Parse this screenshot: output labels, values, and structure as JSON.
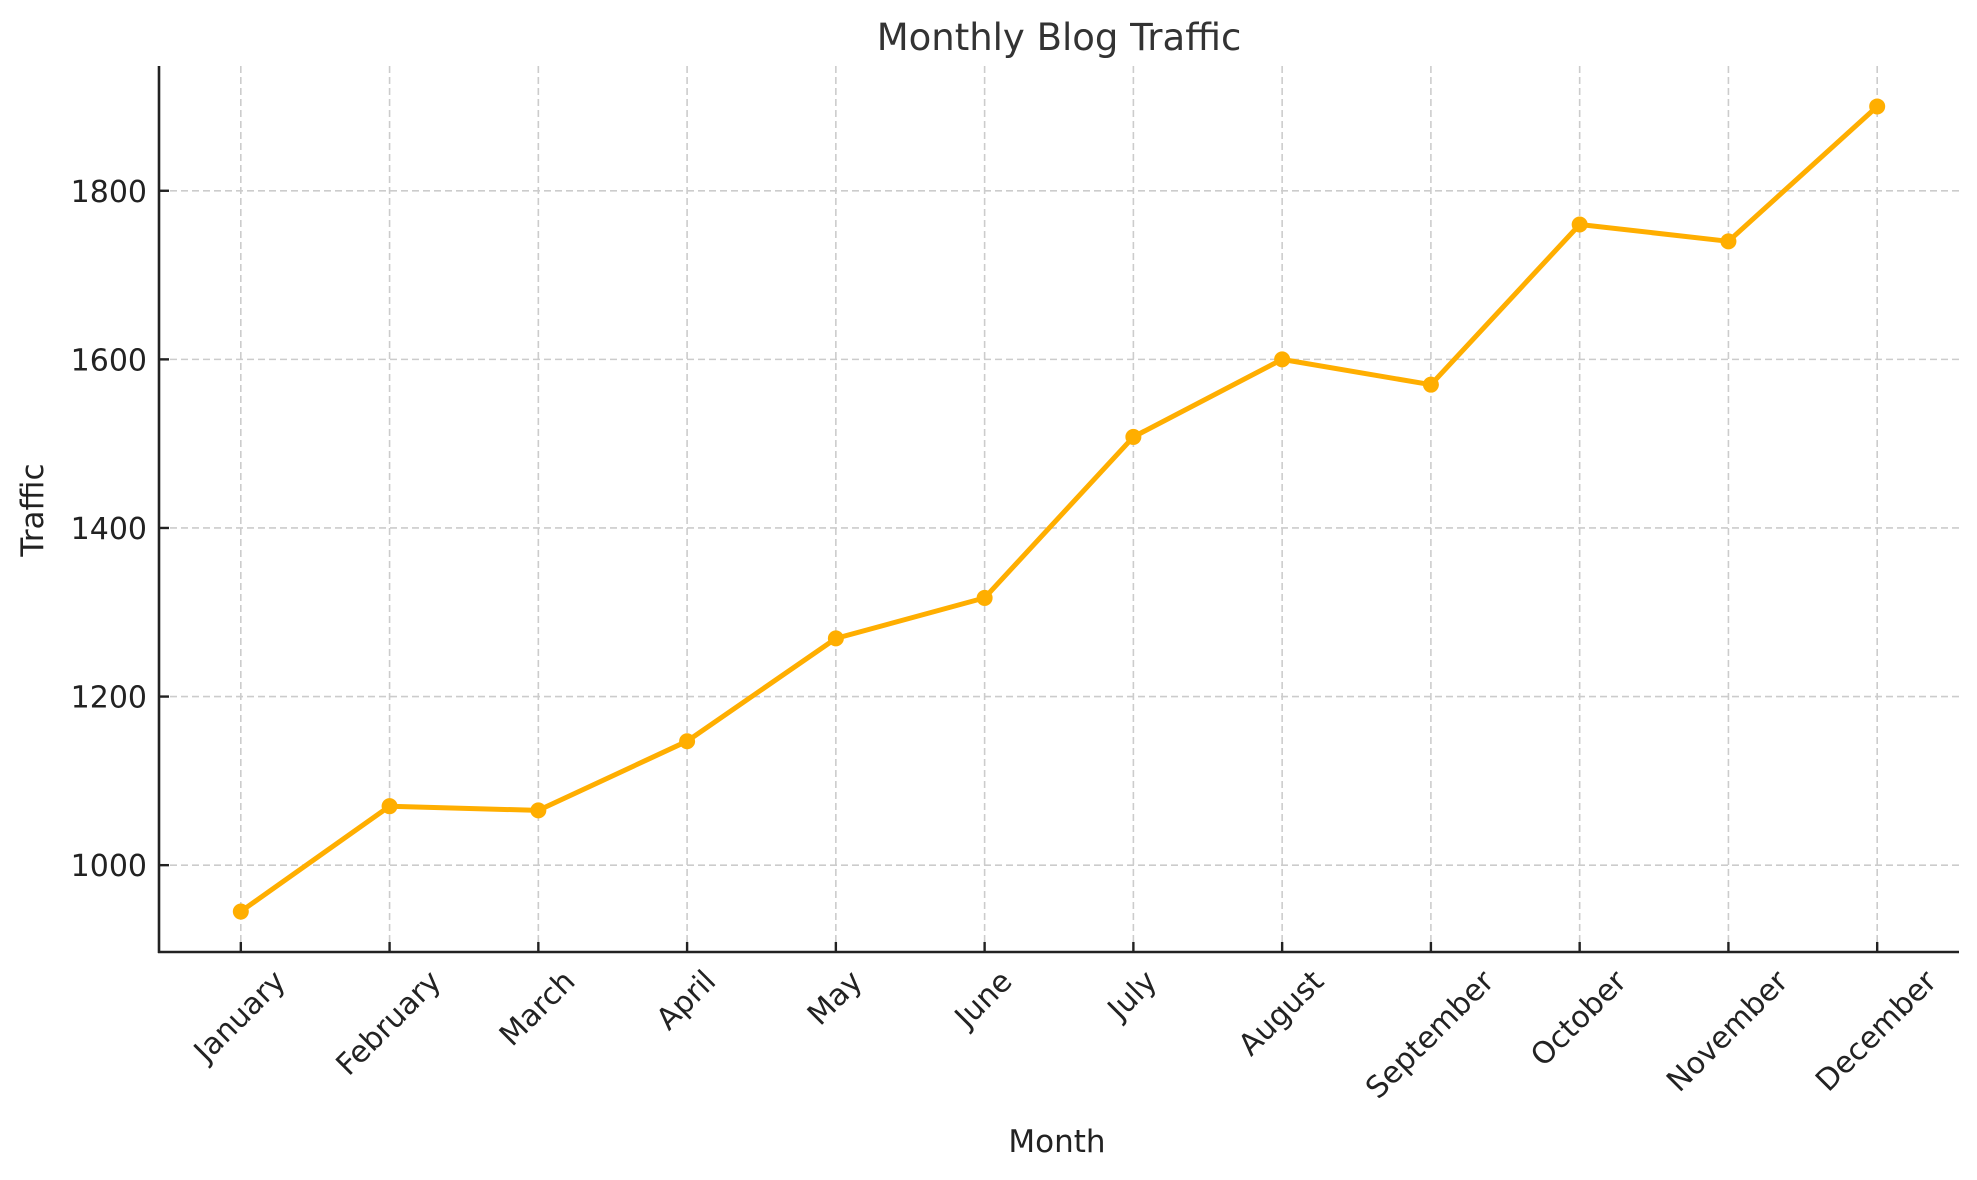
{
  "chart_data": {
    "type": "line",
    "title": "Monthly Blog Traffic",
    "xlabel": "Month",
    "ylabel": "Traffic",
    "categories": [
      "January",
      "February",
      "March",
      "April",
      "May",
      "June",
      "July",
      "August",
      "September",
      "October",
      "November",
      "December"
    ],
    "series": [
      {
        "name": "Traffic",
        "color": "#FFAE00",
        "marker": "circle",
        "values": [
          945,
          1070,
          1065,
          1147,
          1269,
          1317,
          1508,
          1600,
          1570,
          1760,
          1740,
          1900
        ]
      }
    ],
    "yticks": [
      1000,
      1200,
      1400,
      1600,
      1800
    ],
    "ylim": [
      897,
      1948
    ],
    "xtick_rotation": 45,
    "grid": true,
    "grid_style": "dashed",
    "legend": false
  }
}
